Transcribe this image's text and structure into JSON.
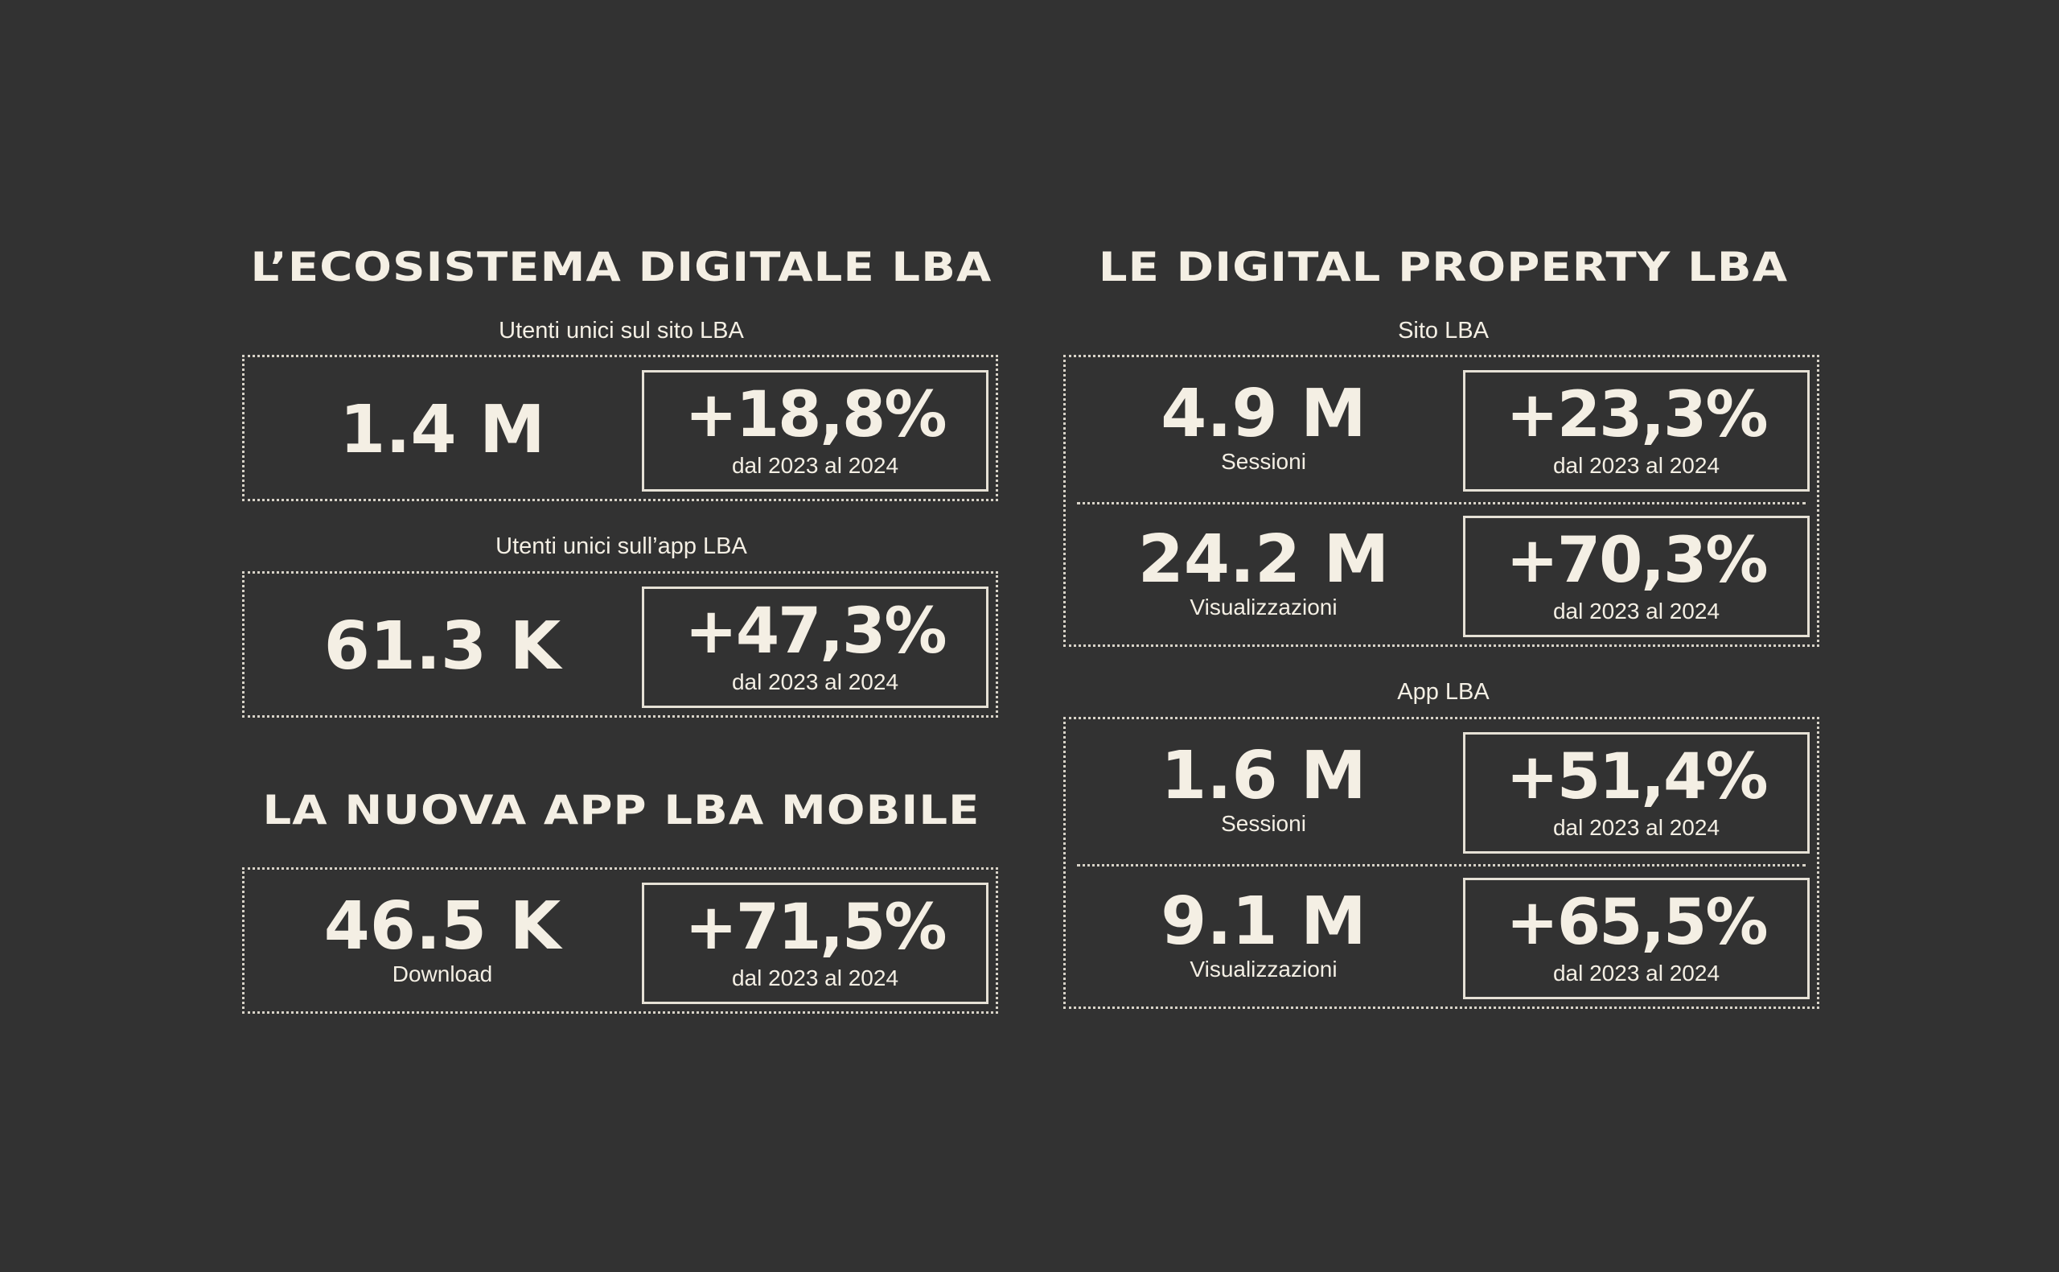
{
  "left": {
    "title": "L’ECOSISTEMA DIGITALE LBA",
    "site": {
      "label": "Utenti unici sul sito LBA",
      "value": "1.4 M",
      "change": "+18,8%",
      "period": "dal 2023 al 2024"
    },
    "app": {
      "label": "Utenti unici sull’app LBA",
      "value": "61.3 K",
      "change": "+47,3%",
      "period": "dal 2023 al 2024"
    },
    "mobile_title": "LA NUOVA APP LBA MOBILE",
    "download": {
      "value": "46.5 K",
      "sublabel": "Download",
      "change": "+71,5%",
      "period": "dal 2023 al 2024"
    }
  },
  "right": {
    "title": "LE DIGITAL PROPERTY LBA",
    "site": {
      "label": "Sito LBA",
      "sessions": {
        "value": "4.9 M",
        "sublabel": "Sessioni",
        "change": "+23,3%",
        "period": "dal 2023 al 2024"
      },
      "views": {
        "value": "24.2 M",
        "sublabel": "Visualizzazioni",
        "change": "+70,3%",
        "period": "dal 2023 al 2024"
      }
    },
    "app": {
      "label": "App LBA",
      "sessions": {
        "value": "1.6 M",
        "sublabel": "Sessioni",
        "change": "+51,4%",
        "period": "dal 2023 al 2024"
      },
      "views": {
        "value": "9.1 M",
        "sublabel": "Visualizzazioni",
        "change": "+65,5%",
        "period": "dal 2023 al 2024"
      }
    }
  }
}
